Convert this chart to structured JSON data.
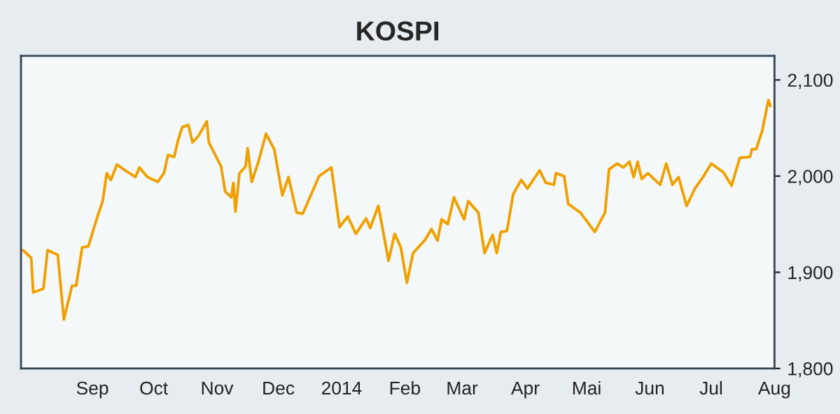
{
  "chart_data": {
    "type": "line",
    "title": "KOSPI",
    "x": [
      "2013-07-29",
      "2013-08-02",
      "2013-08-03",
      "2013-08-08",
      "2013-08-10",
      "2013-08-15",
      "2013-08-18",
      "2013-08-22",
      "2013-08-24",
      "2013-08-27",
      "2013-08-30",
      "2013-09-03",
      "2013-09-06",
      "2013-09-08",
      "2013-09-10",
      "2013-09-13",
      "2013-09-17",
      "2013-09-22",
      "2013-09-24",
      "2013-09-28",
      "2013-10-03",
      "2013-10-06",
      "2013-10-08",
      "2013-10-11",
      "2013-10-13",
      "2013-10-15",
      "2013-10-18",
      "2013-10-20",
      "2013-10-23",
      "2013-10-27",
      "2013-10-28",
      "2013-11-03",
      "2013-11-05",
      "2013-11-08",
      "2013-11-09",
      "2013-11-10",
      "2013-11-12",
      "2013-11-15",
      "2013-11-16",
      "2013-11-18",
      "2013-11-21",
      "2013-11-25",
      "2013-11-29",
      "2013-12-03",
      "2013-12-06",
      "2013-12-10",
      "2013-12-13",
      "2013-12-21",
      "2013-12-27",
      "2013-12-31",
      "2014-01-04",
      "2014-01-08",
      "2014-01-13",
      "2014-01-15",
      "2014-01-19",
      "2014-01-24",
      "2014-01-27",
      "2014-01-30",
      "2014-02-02",
      "2014-02-05",
      "2014-02-08",
      "2014-02-11",
      "2014-02-14",
      "2014-02-17",
      "2014-02-19",
      "2014-02-22",
      "2014-02-25",
      "2014-03-02",
      "2014-03-04",
      "2014-03-09",
      "2014-03-12",
      "2014-03-16",
      "2014-03-18",
      "2014-03-20",
      "2014-03-23",
      "2014-03-26",
      "2014-03-30",
      "2014-04-02",
      "2014-04-08",
      "2014-04-11",
      "2014-04-15",
      "2014-04-16",
      "2014-04-20",
      "2014-04-22",
      "2014-04-28",
      "2014-05-05",
      "2014-05-10",
      "2014-05-12",
      "2014-05-16",
      "2014-05-19",
      "2014-05-22",
      "2014-05-24",
      "2014-05-26",
      "2014-05-28",
      "2014-05-31",
      "2014-06-06",
      "2014-06-09",
      "2014-06-12",
      "2014-06-15",
      "2014-06-19",
      "2014-06-23",
      "2014-06-27",
      "2014-07-01",
      "2014-07-07",
      "2014-07-11",
      "2014-07-15",
      "2014-07-20",
      "2014-07-21",
      "2014-07-23",
      "2014-07-26",
      "2014-07-29",
      "2014-07-30"
    ],
    "series": [
      {
        "color": "#f0a000",
        "values": [
          1923,
          1915,
          1879,
          1883,
          1923,
          1918,
          1851,
          1886,
          1886,
          1926,
          1927,
          1955,
          1974,
          2003,
          1996,
          2012,
          2006,
          1999,
          2009,
          1999,
          1994,
          2003,
          2022,
          2020,
          2038,
          2051,
          2053,
          2035,
          2042,
          2057,
          2035,
          2010,
          1984,
          1978,
          1993,
          1963,
          2003,
          2010,
          2029,
          1994,
          2013,
          2044,
          2028,
          1980,
          1999,
          1962,
          1961,
          2000,
          2009,
          1947,
          1958,
          1940,
          1956,
          1946,
          1969,
          1912,
          1940,
          1926,
          1889,
          1920,
          1927,
          1934,
          1945,
          1933,
          1955,
          1950,
          1978,
          1955,
          1974,
          1962,
          1920,
          1939,
          1920,
          1942,
          1943,
          1981,
          1996,
          1987,
          2006,
          1993,
          1991,
          2003,
          2000,
          1971,
          1962,
          1942,
          1962,
          2007,
          2013,
          2009,
          2015,
          1999,
          2015,
          1997,
          2003,
          1991,
          2013,
          1991,
          1999,
          1969,
          1987,
          1999,
          2013,
          2004,
          1990,
          2019,
          2020,
          2028,
          2028,
          2047,
          2079,
          2073
        ]
      }
    ],
    "xlim": [
      "2013-07-28",
      "2014-08-01"
    ],
    "xticks": [
      {
        "value": "2013-09-01",
        "label": "Sep"
      },
      {
        "value": "2013-10-01",
        "label": "Oct"
      },
      {
        "value": "2013-11-01",
        "label": "Nov"
      },
      {
        "value": "2013-12-01",
        "label": "Dec"
      },
      {
        "value": "2014-01-01",
        "label": "2014"
      },
      {
        "value": "2014-02-01",
        "label": "Feb"
      },
      {
        "value": "2014-03-01",
        "label": "Mar"
      },
      {
        "value": "2014-04-01",
        "label": "Apr"
      },
      {
        "value": "2014-05-01",
        "label": "Mai"
      },
      {
        "value": "2014-06-01",
        "label": "Jun"
      },
      {
        "value": "2014-07-01",
        "label": "Jul"
      },
      {
        "value": "2014-08-01",
        "label": "Aug"
      }
    ],
    "ylim": [
      1800,
      2125
    ],
    "yticks": [
      {
        "value": 1800,
        "label": "1,800"
      },
      {
        "value": 1900,
        "label": "1,900"
      },
      {
        "value": 2000,
        "label": "2,000"
      },
      {
        "value": 2100,
        "label": "2,100"
      }
    ],
    "grid": false,
    "legend": false,
    "marker": "none",
    "line_style": "solid"
  }
}
